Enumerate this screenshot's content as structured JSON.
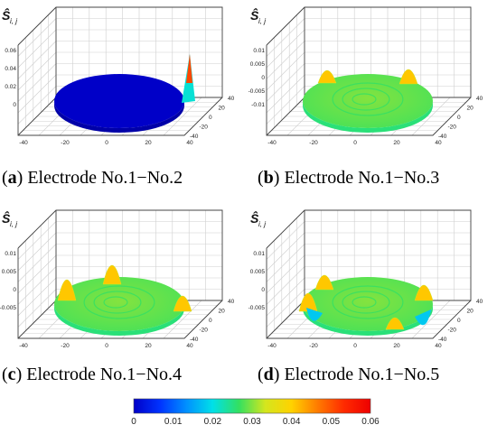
{
  "colormap": [
    "#0000c8",
    "#0033ff",
    "#0090ff",
    "#00e0e8",
    "#33e060",
    "#d4e61e",
    "#ffd200",
    "#ff7a00",
    "#ff2a00",
    "#ee0000"
  ],
  "chart_data": [
    {
      "type": "surface",
      "panel_label": "a",
      "title": "Electrode No.1−No.2",
      "zlabel": "Ŝ",
      "zlabel_sub": "i, j",
      "zticks": [
        "0.06",
        "0.04",
        "0.02",
        "0"
      ],
      "xticks": [
        "-40",
        "-20",
        "0",
        "20",
        "40"
      ],
      "yticks": [
        "40",
        "20",
        "0",
        "-20",
        "-40"
      ],
      "surface_level": 0.0,
      "peak_value": 0.06
    },
    {
      "type": "surface",
      "panel_label": "b",
      "title": "Electrode No.1−No.3",
      "zlabel": "Ŝ",
      "zlabel_sub": "i, j",
      "zticks": [
        "0.01",
        "0.005",
        "0",
        "-0.005",
        "-0.01"
      ],
      "xticks": [
        "-40",
        "-20",
        "0",
        "20",
        "40"
      ],
      "yticks": [
        "40",
        "20",
        "0",
        "-20",
        "-40"
      ],
      "surface_level": 0.03
    },
    {
      "type": "surface",
      "panel_label": "c",
      "title": "Electrode No.1−No.4",
      "zlabel": "Ŝ",
      "zlabel_sub": "i, j",
      "zticks": [
        "0.01",
        "0.005",
        "0",
        "-0.005"
      ],
      "xticks": [
        "-40",
        "-20",
        "0",
        "20",
        "40"
      ],
      "yticks": [
        "40",
        "20",
        "0",
        "-20",
        "-40"
      ],
      "surface_level": 0.03
    },
    {
      "type": "surface",
      "panel_label": "d",
      "title": "Electrode No.1−No.5",
      "zlabel": "Ŝ",
      "zlabel_sub": "i, j",
      "zticks": [
        "0.01",
        "0.005",
        "0",
        "-0.005"
      ],
      "xticks": [
        "-40",
        "-20",
        "0",
        "20",
        "40"
      ],
      "yticks": [
        "40",
        "20",
        "0",
        "-20",
        "-40"
      ],
      "surface_level": 0.03
    }
  ],
  "colorbar": {
    "ticks": [
      "0",
      "0.01",
      "0.02",
      "0.03",
      "0.04",
      "0.05",
      "0.06"
    ],
    "min": 0,
    "max": 0.06
  }
}
